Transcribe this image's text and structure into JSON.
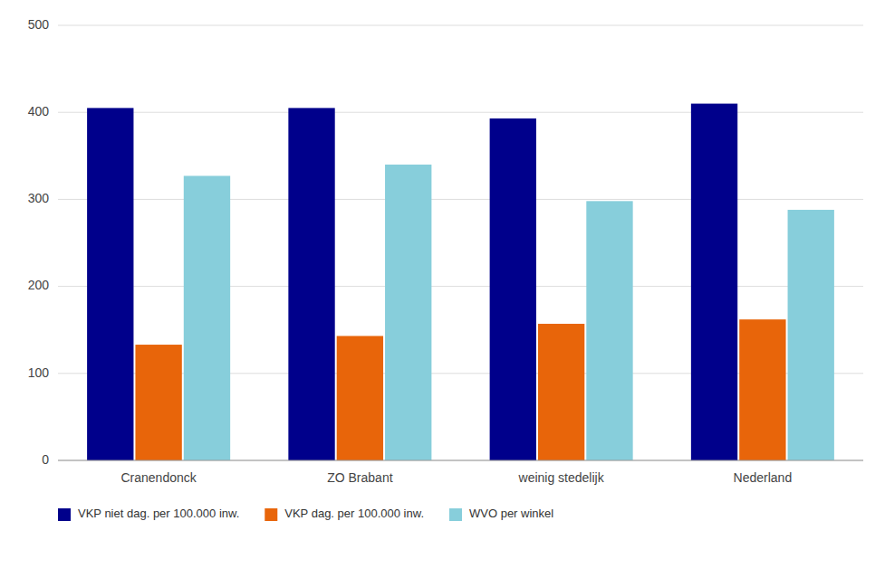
{
  "chart_data": {
    "type": "bar",
    "categories": [
      "Cranendonck",
      "ZO Brabant",
      "weinig stedelijk",
      "Nederland"
    ],
    "series": [
      {
        "name": "VKP niet dag. per 100.000 inw.",
        "color": "#00008B",
        "values": [
          405,
          405,
          393,
          410
        ]
      },
      {
        "name": "VKP dag. per 100.000 inw.",
        "color": "#E8650A",
        "values": [
          133,
          143,
          157,
          162
        ]
      },
      {
        "name": "WVO per winkel",
        "color": "#87CEDB",
        "values": [
          327,
          340,
          298,
          288
        ]
      }
    ],
    "ylim": [
      0,
      500
    ],
    "yticks": [
      0,
      100,
      200,
      300,
      400,
      500
    ],
    "grid": true,
    "legend": "bottom"
  }
}
